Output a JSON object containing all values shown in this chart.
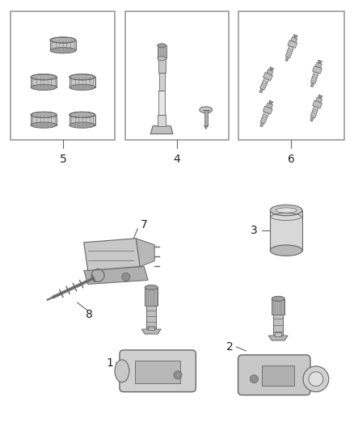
{
  "background_color": "#ffffff",
  "line_color": "#666666",
  "box_line_color": "#999999",
  "label_color": "#222222",
  "figsize": [
    4.38,
    5.33
  ],
  "dpi": 100
}
